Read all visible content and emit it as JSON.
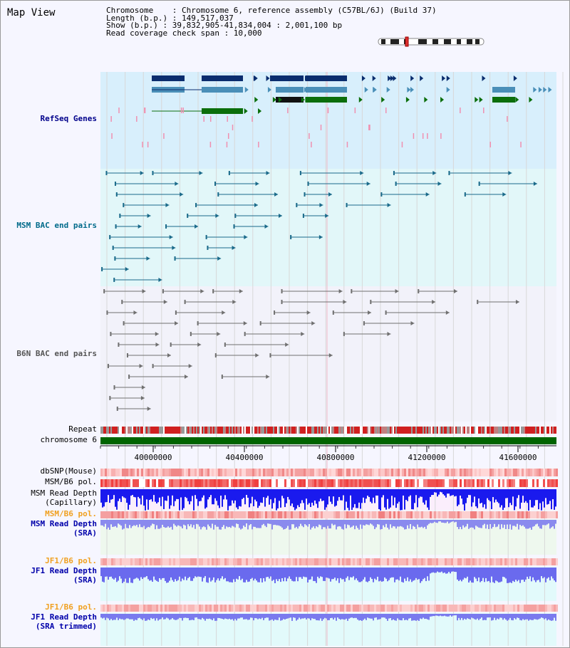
{
  "title": "Map View",
  "info": {
    "chromosome": "Chromosome    : Chromosome 6, reference assembly (C57BL/6J) (Build 37)",
    "length": "Length (b.p.) : 149,517,037",
    "show": "Show (b.p.) : 39,832,905-41,834,004 : 2,001,100 bp",
    "span": "Read coverage check span : 10,000"
  },
  "colors": {
    "refseq_bg": "#d8effc",
    "msm_bac_bg": "#e2f7f9",
    "b6n_bac_bg": "#f2f2fa",
    "chromosome_bar": "#006400",
    "refseq_label": "#00008b",
    "msm_label": "#006a8a",
    "b6n_label": "#555555",
    "pol_label": "#f0a020",
    "depth_label": "#0000aa"
  },
  "tracks": {
    "refseq": "RefSeq Genes",
    "msm_bac": "MSM BAC end pairs",
    "b6n_bac": "B6N BAC end pairs",
    "repeat": "Repeat",
    "chromosome": "chromosome 6",
    "dbsnp": "dbSNP(Mouse)",
    "msm_b6_pol_1": "MSM/B6 pol.",
    "msm_depth_capillary": "MSM Read Depth",
    "msm_depth_capillary_sub": "(Capillary)",
    "msm_b6_pol_2": "MSM/B6 pol.",
    "msm_depth_sra": "MSM Read Depth",
    "msm_depth_sra_sub": "(SRA)",
    "jf1_b6_pol_1": "JF1/B6 pol.",
    "jf1_depth_sra": "JF1 Read Depth",
    "jf1_depth_sra_sub": "(SRA)",
    "jf1_b6_pol_2": "JF1/B6 pol.",
    "jf1_depth_trimmed": "JF1 Read Depth",
    "jf1_depth_trimmed_sub": "(SRA trimmed)"
  },
  "axis": {
    "ticks": [
      "40000000",
      "40400000",
      "40800000",
      "41200000",
      "41600000"
    ]
  }
}
